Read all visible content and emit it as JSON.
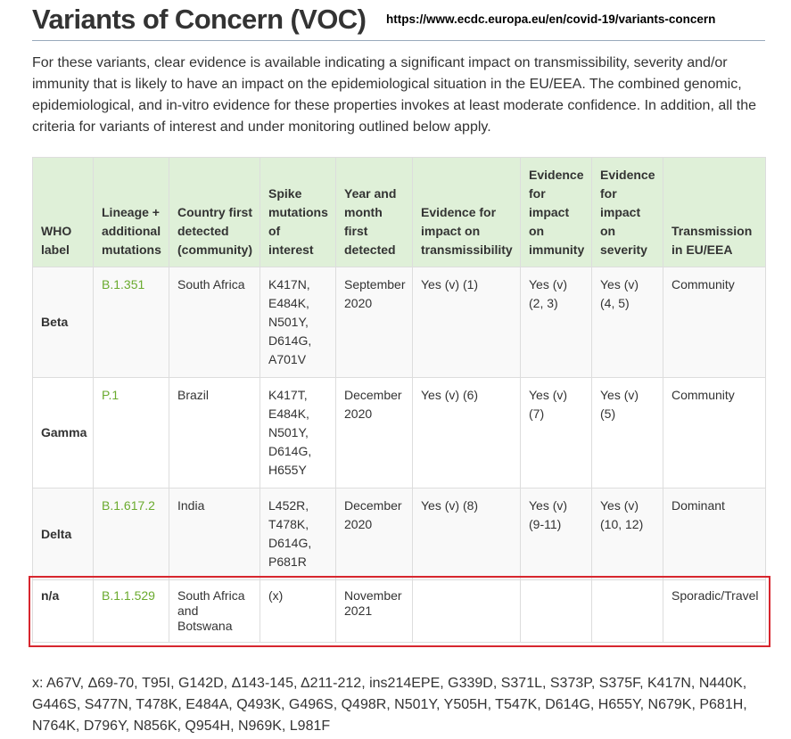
{
  "header": {
    "title": "Variants of Concern (VOC)",
    "url": "https://www.ecdc.europa.eu/en/covid-19/variants-concern"
  },
  "intro": "For these variants, clear evidence is available indicating a significant impact on transmissibility, severity and/or immunity that is likely to have an impact on the epidemiological situation in the EU/EEA. The combined genomic, epidemiological, and in-vitro evidence for these properties invokes at least moderate confidence. In addition, all the criteria for variants of interest and under monitoring outlined below apply.",
  "table": {
    "columns": [
      "WHO label",
      "Lineage + additional mutations",
      "Country first detected (community)",
      "Spike mutations of interest",
      "Year and month first detected",
      "Evidence for impact on transmissibility",
      "Evidence for impact on immunity",
      "Evidence for impact on severity",
      "Transmission in EU/EEA"
    ],
    "rows": [
      [
        "Beta",
        "B.1.351",
        "South Africa",
        "K417N, E484K, N501Y, D614G, A701V",
        "September 2020",
        "Yes (v) (1)",
        "Yes (v) (2, 3)",
        "Yes (v) (4, 5)",
        "Community"
      ],
      [
        "Gamma",
        "P.1",
        "Brazil",
        "K417T, E484K, N501Y, D614G, H655Y",
        "December 2020",
        "Yes (v) (6)",
        "Yes (v) (7)",
        "Yes (v) (5)",
        "Community"
      ],
      [
        "Delta",
        "B.1.617.2",
        "India",
        "L452R, T478K, D614G, P681R",
        "December 2020",
        "Yes (v) (8)",
        "Yes (v) (9-11)",
        "Yes (v) (10, 12)",
        "Dominant"
      ],
      [
        "n/a",
        "B.1.1.529",
        "South Africa and Botswana",
        "(x)",
        "November 2021",
        null,
        null,
        null,
        "Sporadic/Travel"
      ]
    ]
  },
  "footnote": "x: A67V, Δ69-70, T95I, G142D, Δ143-145, Δ211-212, ins214EPE, G339D, S371L, S373P, S375F, K417N, N440K, G446S, S477N, T478K, E484A, Q493K, G496S, Q498R, N501Y, Y505H, T547K, D614G, H655Y, N679K, P681H, N764K, D796Y, N856K, Q954H, N969K, L981F"
}
